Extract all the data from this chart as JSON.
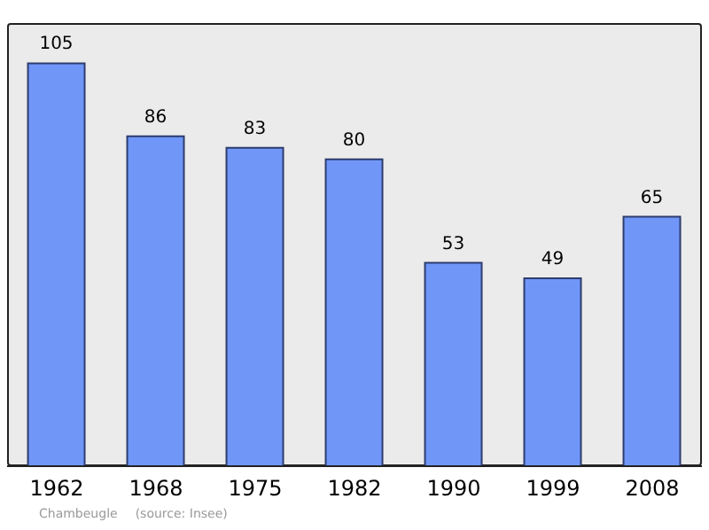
{
  "chart_data": {
    "type": "bar",
    "categories": [
      "1962",
      "1968",
      "1975",
      "1982",
      "1990",
      "1999",
      "2008"
    ],
    "values": [
      105,
      86,
      83,
      80,
      53,
      49,
      65
    ],
    "color": "#7096f8",
    "data_labels": true,
    "annotations": [
      "Chambeugle",
      "(source: Insee)"
    ]
  }
}
